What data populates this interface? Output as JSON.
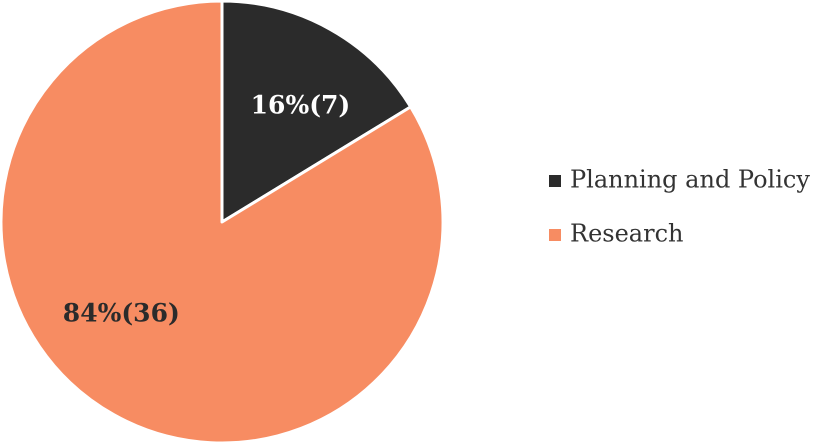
{
  "chart_data": {
    "type": "pie",
    "title": "",
    "slices": [
      {
        "name": "Planning and Policy",
        "value": 7,
        "percent": 16,
        "label": "16%(7)",
        "color": "#2b2b2b",
        "label_color": "#ffffff"
      },
      {
        "name": "Research",
        "value": 36,
        "percent": 84,
        "label": "84%(36)",
        "color": "#f78c62",
        "label_color": "#2b2b2b"
      }
    ],
    "legend": {
      "placement": "right",
      "entries": [
        "Planning and Policy",
        "Research"
      ]
    }
  }
}
